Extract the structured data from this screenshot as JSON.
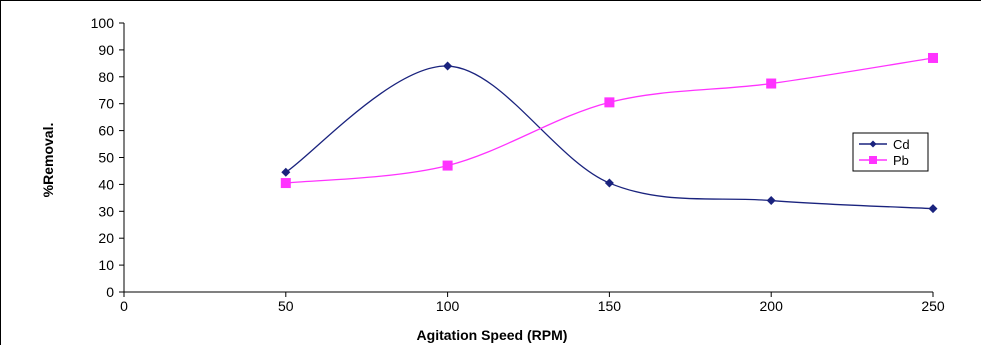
{
  "chart_data": {
    "type": "line",
    "title": "",
    "xlabel": "Agitation Speed (RPM)",
    "ylabel": "%Removal.",
    "xlim": [
      0,
      250
    ],
    "ylim": [
      0,
      100
    ],
    "xticks": [
      0,
      50,
      100,
      150,
      200,
      250
    ],
    "yticks": [
      0,
      10,
      20,
      30,
      40,
      50,
      60,
      70,
      80,
      90,
      100
    ],
    "grid": false,
    "legend_position": "right",
    "smooth": true,
    "series": [
      {
        "name": "Cd",
        "color": "#1a237e",
        "marker": "diamond",
        "x": [
          50,
          100,
          150,
          200,
          250
        ],
        "y": [
          44.5,
          84,
          40.5,
          34,
          31
        ]
      },
      {
        "name": "Pb",
        "color": "#ff33ff",
        "marker": "square",
        "x": [
          50,
          100,
          150,
          200,
          250
        ],
        "y": [
          40.5,
          47,
          70.5,
          77.5,
          87
        ]
      }
    ]
  }
}
